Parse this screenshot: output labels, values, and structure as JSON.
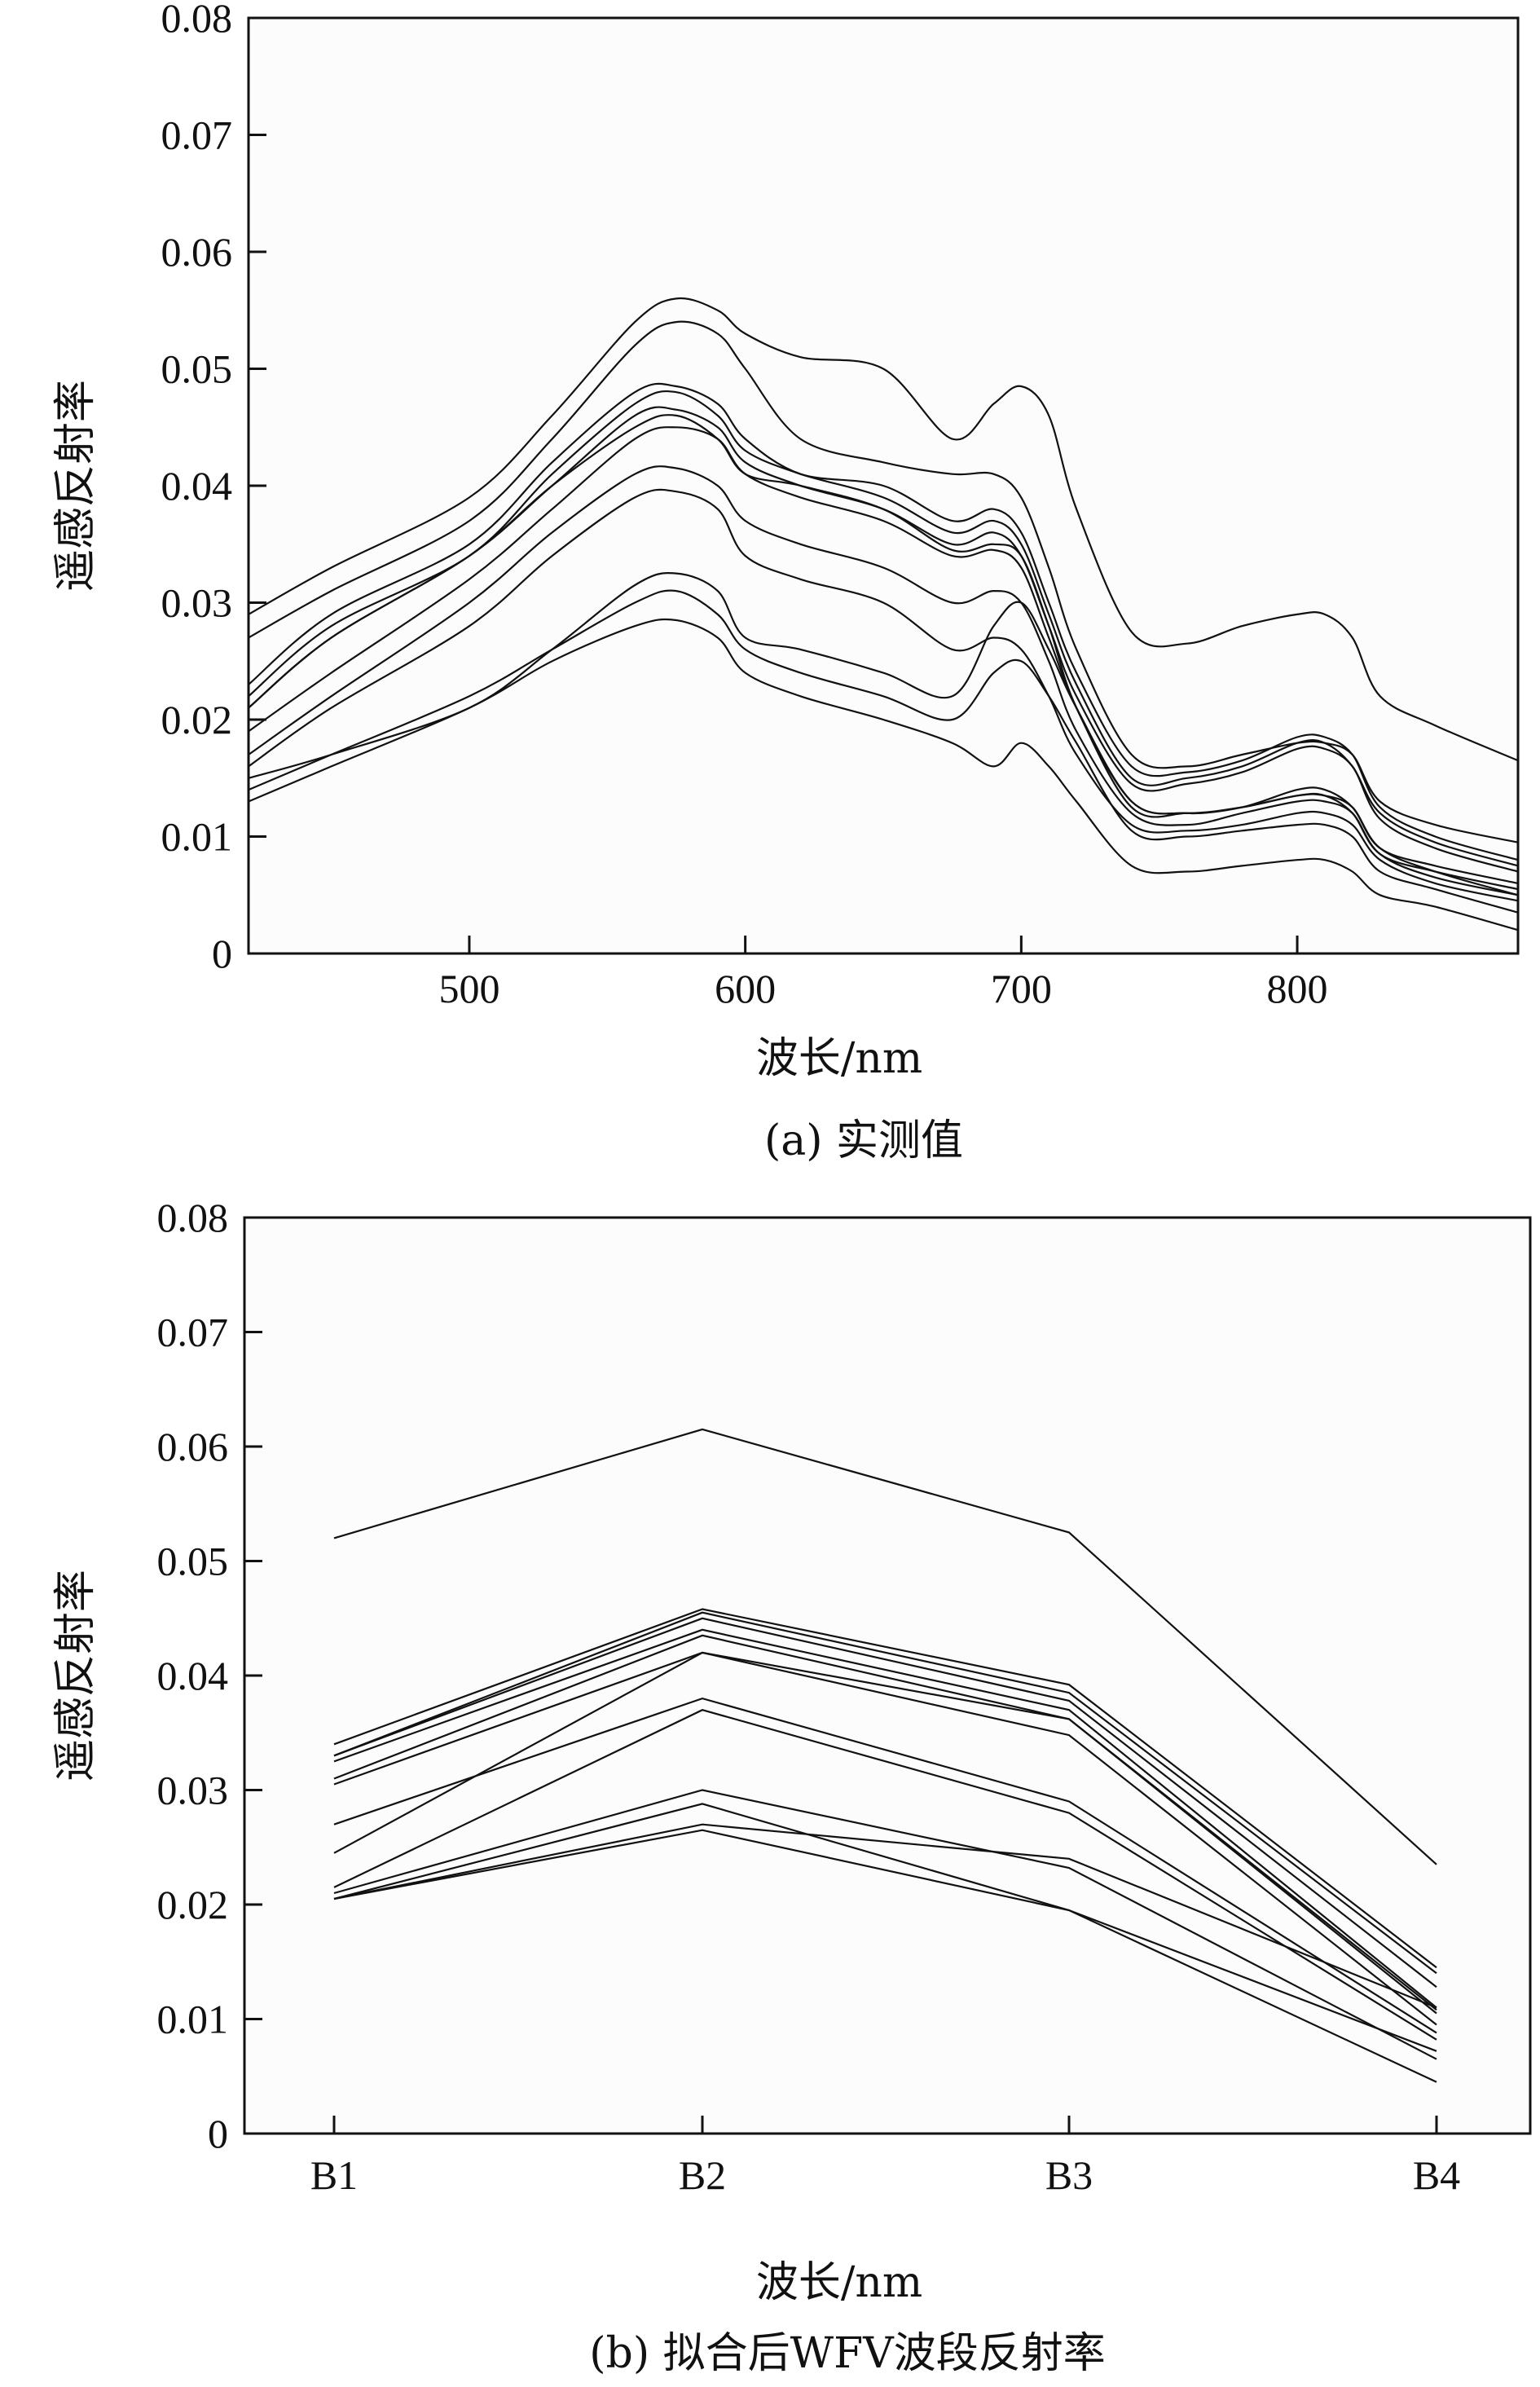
{
  "chart_data": [
    {
      "type": "line",
      "caption": "(a) 实测值",
      "xlabel": "波长/nm",
      "ylabel": "遥感反射率",
      "xlim": [
        420,
        880
      ],
      "ylim": [
        0,
        0.08
      ],
      "xticks": [
        500,
        600,
        700,
        800
      ],
      "yticks": [
        0,
        0.01,
        0.02,
        0.03,
        0.04,
        0.05,
        0.06,
        0.07,
        0.08
      ],
      "ytick_labels": [
        "0",
        "0.01",
        "0.02",
        "0.03",
        "0.04",
        "0.05",
        "0.06",
        "0.07",
        "0.08"
      ],
      "grid": false,
      "series": [
        {
          "x": [
            420,
            450,
            500,
            530,
            560,
            575,
            590,
            600,
            620,
            650,
            675,
            690,
            700,
            710,
            720,
            740,
            760,
            780,
            800,
            810,
            820,
            830,
            850,
            880
          ],
          "y": [
            0.029,
            0.033,
            0.039,
            0.046,
            0.054,
            0.056,
            0.055,
            0.053,
            0.051,
            0.05,
            0.044,
            0.047,
            0.0485,
            0.046,
            0.038,
            0.0275,
            0.0265,
            0.028,
            0.029,
            0.029,
            0.027,
            0.022,
            0.0195,
            0.0165
          ]
        },
        {
          "x": [
            420,
            450,
            500,
            530,
            560,
            575,
            590,
            600,
            620,
            650,
            675,
            690,
            700,
            710,
            720,
            740,
            760,
            780,
            800,
            810,
            820,
            830,
            850,
            880
          ],
          "y": [
            0.027,
            0.031,
            0.037,
            0.044,
            0.052,
            0.054,
            0.053,
            0.05,
            0.044,
            0.042,
            0.041,
            0.041,
            0.039,
            0.033,
            0.026,
            0.017,
            0.016,
            0.017,
            0.018,
            0.018,
            0.017,
            0.013,
            0.011,
            0.0095
          ]
        },
        {
          "x": [
            420,
            450,
            500,
            530,
            560,
            575,
            590,
            600,
            620,
            650,
            675,
            690,
            700,
            710,
            720,
            740,
            760,
            780,
            800,
            810,
            820,
            830,
            850,
            880
          ],
          "y": [
            0.023,
            0.029,
            0.035,
            0.042,
            0.048,
            0.0485,
            0.047,
            0.044,
            0.041,
            0.04,
            0.037,
            0.038,
            0.036,
            0.03,
            0.024,
            0.016,
            0.0155,
            0.0165,
            0.0185,
            0.0185,
            0.017,
            0.0125,
            0.01,
            0.008
          ]
        },
        {
          "x": [
            420,
            450,
            500,
            530,
            560,
            575,
            590,
            600,
            620,
            650,
            675,
            690,
            700,
            710,
            720,
            740,
            760,
            780,
            800,
            810,
            820,
            830,
            850,
            880
          ],
          "y": [
            0.022,
            0.028,
            0.034,
            0.041,
            0.047,
            0.048,
            0.046,
            0.043,
            0.041,
            0.039,
            0.036,
            0.037,
            0.035,
            0.029,
            0.023,
            0.015,
            0.015,
            0.016,
            0.018,
            0.018,
            0.016,
            0.012,
            0.0095,
            0.0075
          ]
        },
        {
          "x": [
            420,
            450,
            500,
            530,
            560,
            575,
            590,
            600,
            620,
            650,
            675,
            690,
            700,
            710,
            720,
            740,
            760,
            780,
            800,
            810,
            820,
            830,
            850,
            880
          ],
          "y": [
            0.021,
            0.027,
            0.034,
            0.04,
            0.046,
            0.0465,
            0.045,
            0.042,
            0.04,
            0.038,
            0.035,
            0.036,
            0.034,
            0.028,
            0.022,
            0.0145,
            0.0145,
            0.0155,
            0.0175,
            0.0175,
            0.016,
            0.0115,
            0.009,
            0.007
          ]
        },
        {
          "x": [
            420,
            450,
            500,
            530,
            560,
            575,
            590,
            600,
            620,
            650,
            675,
            690,
            700,
            710,
            720,
            740,
            760,
            780,
            800,
            810,
            820,
            830,
            850,
            880
          ],
          "y": [
            0.021,
            0.027,
            0.034,
            0.04,
            0.045,
            0.046,
            0.044,
            0.041,
            0.04,
            0.038,
            0.0345,
            0.035,
            0.034,
            0.028,
            0.021,
            0.013,
            0.012,
            0.0125,
            0.014,
            0.014,
            0.0125,
            0.009,
            0.0075,
            0.006
          ]
        },
        {
          "x": [
            420,
            450,
            500,
            530,
            560,
            575,
            590,
            600,
            620,
            650,
            675,
            690,
            700,
            710,
            720,
            740,
            760,
            780,
            800,
            810,
            820,
            830,
            850,
            880
          ],
          "y": [
            0.019,
            0.024,
            0.032,
            0.038,
            0.044,
            0.045,
            0.044,
            0.041,
            0.039,
            0.037,
            0.034,
            0.0345,
            0.033,
            0.027,
            0.021,
            0.0125,
            0.012,
            0.0125,
            0.0135,
            0.0135,
            0.012,
            0.0085,
            0.007,
            0.0055
          ]
        },
        {
          "x": [
            420,
            450,
            500,
            530,
            560,
            575,
            590,
            600,
            620,
            650,
            675,
            690,
            700,
            710,
            720,
            740,
            760,
            780,
            800,
            810,
            820,
            830,
            850,
            880
          ],
          "y": [
            0.017,
            0.022,
            0.03,
            0.036,
            0.041,
            0.0415,
            0.04,
            0.037,
            0.035,
            0.033,
            0.03,
            0.031,
            0.03,
            0.025,
            0.019,
            0.012,
            0.011,
            0.012,
            0.013,
            0.013,
            0.012,
            0.0085,
            0.0065,
            0.005
          ]
        },
        {
          "x": [
            420,
            450,
            500,
            530,
            560,
            575,
            590,
            600,
            620,
            650,
            675,
            690,
            700,
            710,
            720,
            740,
            760,
            780,
            800,
            810,
            820,
            830,
            850,
            880
          ],
          "y": [
            0.016,
            0.021,
            0.028,
            0.034,
            0.039,
            0.0395,
            0.038,
            0.034,
            0.032,
            0.03,
            0.026,
            0.027,
            0.026,
            0.022,
            0.017,
            0.011,
            0.0105,
            0.011,
            0.012,
            0.012,
            0.011,
            0.008,
            0.006,
            0.0045
          ]
        },
        {
          "x": [
            420,
            450,
            500,
            530,
            560,
            575,
            590,
            600,
            620,
            650,
            675,
            690,
            700,
            710,
            720,
            740,
            760,
            780,
            800,
            810,
            820,
            830,
            850,
            880
          ],
          "y": [
            0.015,
            0.017,
            0.021,
            0.026,
            0.0315,
            0.0325,
            0.031,
            0.027,
            0.026,
            0.024,
            0.022,
            0.028,
            0.03,
            0.026,
            0.021,
            0.013,
            0.012,
            0.0125,
            0.0135,
            0.0135,
            0.0125,
            0.009,
            0.007,
            0.005
          ]
        },
        {
          "x": [
            420,
            450,
            500,
            530,
            560,
            575,
            590,
            600,
            620,
            650,
            675,
            690,
            700,
            710,
            720,
            740,
            760,
            780,
            800,
            810,
            820,
            830,
            850,
            880
          ],
          "y": [
            0.014,
            0.017,
            0.022,
            0.026,
            0.03,
            0.031,
            0.029,
            0.026,
            0.024,
            0.022,
            0.02,
            0.024,
            0.025,
            0.022,
            0.018,
            0.0105,
            0.01,
            0.0105,
            0.011,
            0.011,
            0.01,
            0.007,
            0.0055,
            0.0035
          ]
        },
        {
          "x": [
            420,
            450,
            500,
            530,
            560,
            575,
            590,
            600,
            620,
            650,
            675,
            690,
            700,
            710,
            720,
            740,
            760,
            780,
            800,
            810,
            820,
            830,
            850,
            880
          ],
          "y": [
            0.013,
            0.016,
            0.021,
            0.025,
            0.028,
            0.0285,
            0.027,
            0.024,
            0.022,
            0.02,
            0.018,
            0.016,
            0.018,
            0.016,
            0.013,
            0.0075,
            0.007,
            0.0075,
            0.008,
            0.008,
            0.007,
            0.005,
            0.004,
            0.002
          ]
        }
      ]
    },
    {
      "type": "line",
      "caption": "(b) 拟合后WFV波段反射率",
      "xlabel": "波长/nm",
      "ylabel": "遥感反射率",
      "categories": [
        "B1",
        "B2",
        "B3",
        "B4"
      ],
      "ylim": [
        0,
        0.08
      ],
      "yticks": [
        0,
        0.01,
        0.02,
        0.03,
        0.04,
        0.05,
        0.06,
        0.07,
        0.08
      ],
      "ytick_labels": [
        "0",
        "0.01",
        "0.02",
        "0.03",
        "0.04",
        "0.05",
        "0.06",
        "0.07",
        "0.08"
      ],
      "grid": false,
      "series": [
        {
          "values": [
            0.052,
            0.0615,
            0.0525,
            0.0235
          ]
        },
        {
          "values": [
            0.034,
            0.0458,
            0.0392,
            0.0145
          ]
        },
        {
          "values": [
            0.033,
            0.0455,
            0.0385,
            0.014
          ]
        },
        {
          "values": [
            0.033,
            0.045,
            0.0378,
            0.0128
          ]
        },
        {
          "values": [
            0.0325,
            0.044,
            0.037,
            0.011
          ]
        },
        {
          "values": [
            0.031,
            0.0435,
            0.0362,
            0.0105
          ]
        },
        {
          "values": [
            0.0305,
            0.042,
            0.0348,
            0.0095
          ]
        },
        {
          "values": [
            0.0245,
            0.042,
            0.0362,
            0.0108
          ]
        },
        {
          "values": [
            0.027,
            0.038,
            0.029,
            0.0088
          ]
        },
        {
          "values": [
            0.0215,
            0.037,
            0.028,
            0.0082
          ]
        },
        {
          "values": [
            0.021,
            0.03,
            0.0232,
            0.0065
          ]
        },
        {
          "values": [
            0.0205,
            0.0288,
            0.0195,
            0.0045
          ]
        },
        {
          "values": [
            0.0205,
            0.0265,
            0.0195,
            0.0072
          ]
        },
        {
          "values": [
            0.0205,
            0.027,
            0.024,
            0.011
          ]
        }
      ]
    }
  ]
}
